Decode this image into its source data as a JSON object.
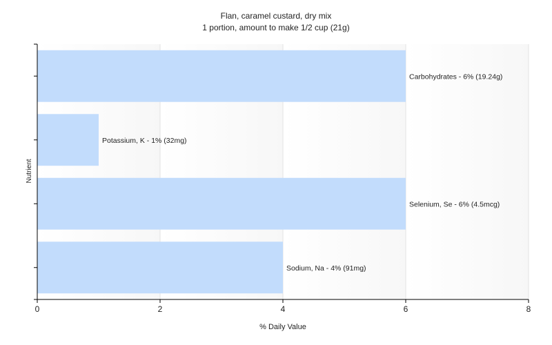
{
  "chart_data": {
    "type": "bar",
    "orientation": "horizontal",
    "title": "Flan, caramel custard, dry mix",
    "subtitle": "1 portion, amount to make 1/2 cup (21g)",
    "xlabel": "% Daily Value",
    "ylabel": "Nutrient",
    "xlim": [
      0,
      8
    ],
    "x_ticks": [
      0,
      2,
      4,
      6,
      8
    ],
    "grid": "vertical",
    "categories": [
      "Carbohydrates",
      "Potassium, K",
      "Selenium, Se",
      "Sodium, Na"
    ],
    "values": [
      6,
      1,
      6,
      4
    ],
    "data_labels": [
      "Carbohydrates - 6% (19.24g)",
      "Potassium, K - 1% (32mg)",
      "Selenium, Se - 6% (4.5mcg)",
      "Sodium, Na - 4% (91mg)"
    ],
    "bar_color": "#c2dcfc",
    "background_color": "#f7f7f7"
  }
}
